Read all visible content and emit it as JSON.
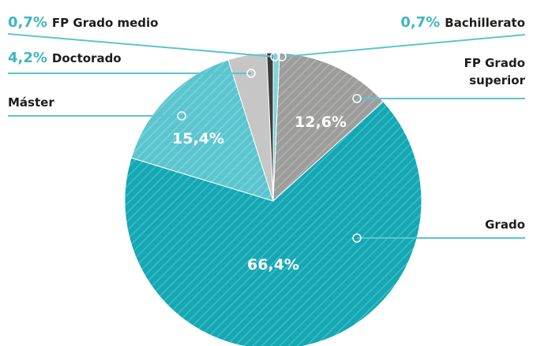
{
  "chart_data": {
    "type": "pie",
    "categories": [
      "Bachillerato",
      "FP Grado superior",
      "Grado",
      "Máster",
      "Doctorado",
      "FP Grado medio"
    ],
    "values": [
      0.7,
      12.6,
      66.4,
      15.4,
      4.2,
      0.7
    ],
    "value_labels": [
      "0,7%",
      "12,6%",
      "66,4%",
      "15,4%",
      "4,2%",
      "0,7%"
    ],
    "colors": [
      "#7fd4dc",
      "#9d9d9c",
      "#13a8b4",
      "#5bc5cf",
      "#c6c6c6",
      "#3c3c3b"
    ]
  }
}
